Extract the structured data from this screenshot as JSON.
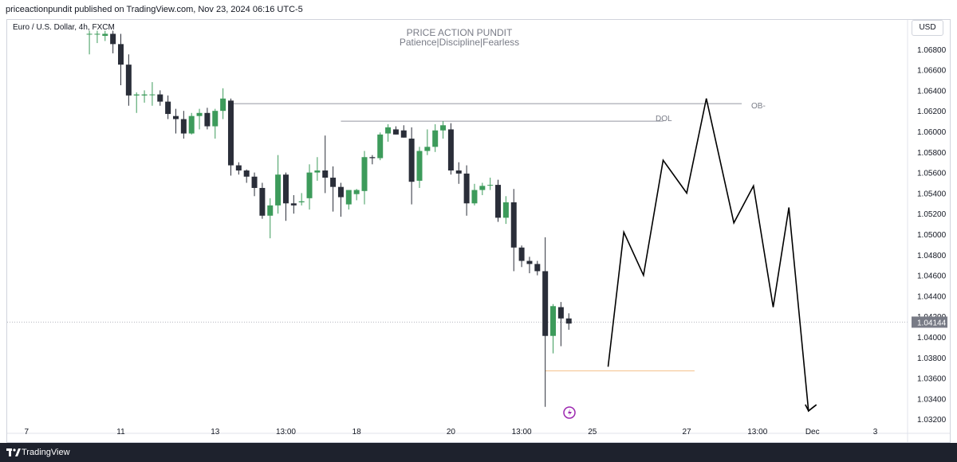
{
  "header": {
    "attribution": "priceactionpundit published on TradingView.com, Nov 23, 2024 06:16 UTC-5"
  },
  "symbol": "Euro / U.S. Dollar, 4h, FXCM",
  "watermark": {
    "title": "PRICE ACTION PUNDIT",
    "subtitle": "Patience|Discipline|Fearless"
  },
  "currency_button": "USD",
  "footer": {
    "brand": "TradingView",
    "logo_icon": "tradingview-logo-icon"
  },
  "colors": {
    "up": "#26a69a",
    "up_fill": "#3d9b5b",
    "down": "#2a2e39",
    "projection": "#000000"
  },
  "annotations": {
    "dol": "DOL",
    "ob": "OB-"
  },
  "event_icon": "lightning-icon",
  "chart_data": {
    "type": "candlestick",
    "ylim": [
      1.0318,
      1.0695
    ],
    "y_ticks": [
      1.068,
      1.066,
      1.064,
      1.062,
      1.06,
      1.058,
      1.056,
      1.054,
      1.052,
      1.05,
      1.048,
      1.046,
      1.044,
      1.042,
      1.04,
      1.038,
      1.036,
      1.034,
      1.032
    ],
    "y_tick_labels": [
      "1.06800",
      "1.06600",
      "1.06400",
      "1.06200",
      "1.06000",
      "1.05800",
      "1.05600",
      "1.05400",
      "1.05200",
      "1.05000",
      "1.04800",
      "1.04600",
      "1.04400",
      "1.04200",
      "1.04000",
      "1.03800",
      "1.03600",
      "1.03400",
      "1.03200"
    ],
    "x_ticks": [
      {
        "label": "7",
        "bar": -12
      },
      {
        "label": "11",
        "bar": 0
      },
      {
        "label": "13",
        "bar": 12
      },
      {
        "label": "13:00",
        "bar": 21
      },
      {
        "label": "18",
        "bar": 30
      },
      {
        "label": "20",
        "bar": 42
      },
      {
        "label": "13:00",
        "bar": 51
      },
      {
        "label": "25",
        "bar": 60
      },
      {
        "label": "27",
        "bar": 72
      },
      {
        "label": "13:00",
        "bar": 81
      },
      {
        "label": "Dec",
        "bar": 88
      },
      {
        "label": "3",
        "bar": 96
      }
    ],
    "current_price": 1.04144,
    "current_price_label": "1.04144",
    "candles": [
      {
        "bar": -4,
        "o": 1.0695,
        "h": 1.0698,
        "l": 1.0675,
        "c": 1.0695
      },
      {
        "bar": -3,
        "o": 1.0695,
        "h": 1.0698,
        "l": 1.0686,
        "c": 1.0695
      },
      {
        "bar": -2,
        "o": 1.0693,
        "h": 1.0698,
        "l": 1.0688,
        "c": 1.0695
      },
      {
        "bar": -1,
        "o": 1.0695,
        "h": 1.0698,
        "l": 1.0676,
        "c": 1.0685
      },
      {
        "bar": 0,
        "o": 1.0685,
        "h": 1.0695,
        "l": 1.0645,
        "c": 1.0665
      },
      {
        "bar": 1,
        "o": 1.0665,
        "h": 1.0675,
        "l": 1.0625,
        "c": 1.0635
      },
      {
        "bar": 2,
        "o": 1.0635,
        "h": 1.0638,
        "l": 1.0618,
        "c": 1.0636
      },
      {
        "bar": 3,
        "o": 1.0635,
        "h": 1.064,
        "l": 1.0628,
        "c": 1.0636
      },
      {
        "bar": 4,
        "o": 1.0636,
        "h": 1.0648,
        "l": 1.0625,
        "c": 1.0636
      },
      {
        "bar": 5,
        "o": 1.0636,
        "h": 1.064,
        "l": 1.0625,
        "c": 1.0629
      },
      {
        "bar": 6,
        "o": 1.0629,
        "h": 1.0635,
        "l": 1.0612,
        "c": 1.0617
      },
      {
        "bar": 7,
        "o": 1.0615,
        "h": 1.0622,
        "l": 1.0598,
        "c": 1.0612
      },
      {
        "bar": 8,
        "o": 1.0612,
        "h": 1.062,
        "l": 1.0593,
        "c": 1.0598
      },
      {
        "bar": 9,
        "o": 1.0598,
        "h": 1.0618,
        "l": 1.0597,
        "c": 1.0615
      },
      {
        "bar": 10,
        "o": 1.0615,
        "h": 1.0622,
        "l": 1.0602,
        "c": 1.0618
      },
      {
        "bar": 11,
        "o": 1.0618,
        "h": 1.0623,
        "l": 1.0602,
        "c": 1.0605
      },
      {
        "bar": 12,
        "o": 1.0605,
        "h": 1.0622,
        "l": 1.0593,
        "c": 1.062
      },
      {
        "bar": 13,
        "o": 1.062,
        "h": 1.0642,
        "l": 1.0612,
        "c": 1.0632
      },
      {
        "bar": 14,
        "o": 1.063,
        "h": 1.0632,
        "l": 1.0557,
        "c": 1.0567
      },
      {
        "bar": 15,
        "o": 1.0567,
        "h": 1.057,
        "l": 1.0558,
        "c": 1.0562
      },
      {
        "bar": 16,
        "o": 1.0562,
        "h": 1.0563,
        "l": 1.055,
        "c": 1.0556
      },
      {
        "bar": 17,
        "o": 1.0556,
        "h": 1.056,
        "l": 1.0537,
        "c": 1.0545
      },
      {
        "bar": 18,
        "o": 1.0545,
        "h": 1.055,
        "l": 1.0515,
        "c": 1.0518
      },
      {
        "bar": 19,
        "o": 1.0518,
        "h": 1.0535,
        "l": 1.0496,
        "c": 1.0528
      },
      {
        "bar": 20,
        "o": 1.0528,
        "h": 1.0577,
        "l": 1.052,
        "c": 1.0558
      },
      {
        "bar": 21,
        "o": 1.0558,
        "h": 1.056,
        "l": 1.0513,
        "c": 1.053
      },
      {
        "bar": 22,
        "o": 1.053,
        "h": 1.0538,
        "l": 1.052,
        "c": 1.0528
      },
      {
        "bar": 23,
        "o": 1.0531,
        "h": 1.054,
        "l": 1.0528,
        "c": 1.0532
      },
      {
        "bar": 24,
        "o": 1.0535,
        "h": 1.0568,
        "l": 1.0524,
        "c": 1.056
      },
      {
        "bar": 25,
        "o": 1.056,
        "h": 1.0575,
        "l": 1.0552,
        "c": 1.0562
      },
      {
        "bar": 26,
        "o": 1.0562,
        "h": 1.0596,
        "l": 1.054,
        "c": 1.0555
      },
      {
        "bar": 27,
        "o": 1.0555,
        "h": 1.0566,
        "l": 1.0522,
        "c": 1.0546
      },
      {
        "bar": 28,
        "o": 1.0546,
        "h": 1.055,
        "l": 1.0517,
        "c": 1.0536
      },
      {
        "bar": 29,
        "o": 1.0529,
        "h": 1.0543,
        "l": 1.0524,
        "c": 1.0543
      },
      {
        "bar": 30,
        "o": 1.0539,
        "h": 1.0544,
        "l": 1.0533,
        "c": 1.0543
      },
      {
        "bar": 31,
        "o": 1.0542,
        "h": 1.0581,
        "l": 1.0529,
        "c": 1.0575
      },
      {
        "bar": 32,
        "o": 1.0575,
        "h": 1.0577,
        "l": 1.0568,
        "c": 1.0574
      },
      {
        "bar": 33,
        "o": 1.0574,
        "h": 1.0599,
        "l": 1.0572,
        "c": 1.0597
      },
      {
        "bar": 34,
        "o": 1.0598,
        "h": 1.0607,
        "l": 1.059,
        "c": 1.0604
      },
      {
        "bar": 35,
        "o": 1.0602,
        "h": 1.0605,
        "l": 1.0597,
        "c": 1.0597
      },
      {
        "bar": 36,
        "o": 1.0601,
        "h": 1.0606,
        "l": 1.0594,
        "c": 1.0594
      },
      {
        "bar": 37,
        "o": 1.0593,
        "h": 1.0604,
        "l": 1.0529,
        "c": 1.0551
      },
      {
        "bar": 38,
        "o": 1.0552,
        "h": 1.0585,
        "l": 1.0545,
        "c": 1.0581
      },
      {
        "bar": 39,
        "o": 1.0581,
        "h": 1.0602,
        "l": 1.0577,
        "c": 1.0585
      },
      {
        "bar": 40,
        "o": 1.0585,
        "h": 1.0607,
        "l": 1.058,
        "c": 1.0601
      },
      {
        "bar": 41,
        "o": 1.0601,
        "h": 1.061,
        "l": 1.0593,
        "c": 1.0606
      },
      {
        "bar": 42,
        "o": 1.0602,
        "h": 1.0608,
        "l": 1.0558,
        "c": 1.0562
      },
      {
        "bar": 43,
        "o": 1.0562,
        "h": 1.057,
        "l": 1.0549,
        "c": 1.0559
      },
      {
        "bar": 44,
        "o": 1.0559,
        "h": 1.0567,
        "l": 1.0518,
        "c": 1.053
      },
      {
        "bar": 45,
        "o": 1.053,
        "h": 1.0549,
        "l": 1.0528,
        "c": 1.0543
      },
      {
        "bar": 46,
        "o": 1.0543,
        "h": 1.055,
        "l": 1.0538,
        "c": 1.0547
      },
      {
        "bar": 47,
        "o": 1.0548,
        "h": 1.0555,
        "l": 1.0543,
        "c": 1.0548
      },
      {
        "bar": 48,
        "o": 1.0548,
        "h": 1.0553,
        "l": 1.0512,
        "c": 1.0516
      },
      {
        "bar": 49,
        "o": 1.0516,
        "h": 1.0537,
        "l": 1.051,
        "c": 1.0531
      },
      {
        "bar": 50,
        "o": 1.0531,
        "h": 1.0544,
        "l": 1.0464,
        "c": 1.0487
      },
      {
        "bar": 51,
        "o": 1.0487,
        "h": 1.0489,
        "l": 1.0468,
        "c": 1.0474
      },
      {
        "bar": 52,
        "o": 1.0474,
        "h": 1.0478,
        "l": 1.0462,
        "c": 1.0471
      },
      {
        "bar": 53,
        "o": 1.0471,
        "h": 1.0474,
        "l": 1.046,
        "c": 1.0464
      },
      {
        "bar": 54,
        "o": 1.0464,
        "h": 1.0497,
        "l": 1.0332,
        "c": 1.0401
      },
      {
        "bar": 55,
        "o": 1.0401,
        "h": 1.0432,
        "l": 1.0384,
        "c": 1.043
      },
      {
        "bar": 56,
        "o": 1.0429,
        "h": 1.0434,
        "l": 1.0391,
        "c": 1.0418
      },
      {
        "bar": 57,
        "o": 1.0418,
        "h": 1.0423,
        "l": 1.0407,
        "c": 1.0413
      }
    ],
    "levels": [
      {
        "bar_start": 14,
        "bar_end": 79,
        "price": 1.0627
      },
      {
        "bar_start": 28,
        "bar_end": 69,
        "price": 1.061
      },
      {
        "bar_start": 54,
        "bar_end": 73,
        "price": 1.0367
      }
    ],
    "projection": [
      {
        "bar": 62,
        "price": 1.0371
      },
      {
        "bar": 64,
        "price": 1.0502
      },
      {
        "bar": 66.5,
        "price": 1.046
      },
      {
        "bar": 69,
        "price": 1.0572
      },
      {
        "bar": 72,
        "price": 1.054
      },
      {
        "bar": 74.5,
        "price": 1.0632
      },
      {
        "bar": 78,
        "price": 1.0511
      },
      {
        "bar": 80.5,
        "price": 1.0547
      },
      {
        "bar": 83,
        "price": 1.0429
      },
      {
        "bar": 85,
        "price": 1.0526
      },
      {
        "bar": 87.5,
        "price": 1.0328
      },
      {
        "bar": 88.5,
        "price": 1.0334
      }
    ]
  }
}
